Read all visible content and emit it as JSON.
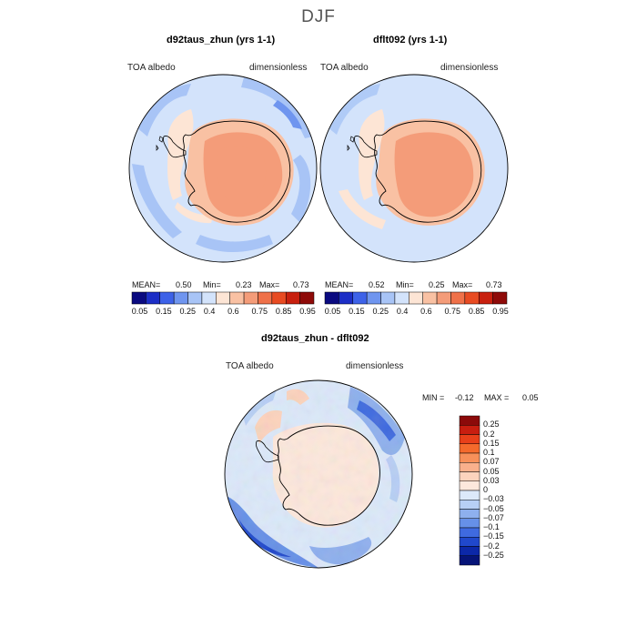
{
  "figure": {
    "season": "DJF"
  },
  "panels": [
    {
      "title": "d92taus_zhun (yrs 1-1)",
      "variable": "TOA albedo",
      "units": "dimensionless",
      "stats": {
        "mean_label": "MEAN=",
        "mean": "0.50",
        "min_label": "Min=",
        "min": "0.23",
        "max_label": "Max=",
        "max": "0.73"
      }
    },
    {
      "title": "dflt092 (yrs 1-1)",
      "variable": "TOA albedo",
      "units": "dimensionless",
      "stats": {
        "mean_label": "MEAN=",
        "mean": "0.52",
        "min_label": "Min=",
        "min": "0.25",
        "max_label": "Max=",
        "max": "0.73"
      }
    },
    {
      "title": "d92taus_zhun - dflt092",
      "variable": "TOA albedo",
      "units": "dimensionless",
      "stats": {
        "min_label": "MIN =",
        "min": "-0.12",
        "max_label": "MAX =",
        "max": "0.05"
      }
    }
  ],
  "chart_data": [
    {
      "type": "heatmap",
      "projection": "south polar stereographic",
      "title": "d92taus_zhun (yrs 1-1)",
      "field": "TOA albedo",
      "units": "dimensionless",
      "mean": 0.5,
      "min": 0.23,
      "max": 0.73,
      "colorbar_levels": [
        "0.05",
        "0.15",
        "0.25",
        "0.4",
        "0.6",
        "0.75",
        "0.85",
        "0.95"
      ],
      "colorbar_colors": [
        "#0a0a80",
        "#1c2ec6",
        "#3d62e8",
        "#6f95ef",
        "#a8c4f6",
        "#d3e3fb",
        "#fde5d5",
        "#f9c1a3",
        "#f49c79",
        "#ef7149",
        "#e84b22",
        "#c8200e",
        "#8e0a08"
      ]
    },
    {
      "type": "heatmap",
      "projection": "south polar stereographic",
      "title": "dflt092 (yrs 1-1)",
      "field": "TOA albedo",
      "units": "dimensionless",
      "mean": 0.52,
      "min": 0.25,
      "max": 0.73,
      "colorbar_levels": [
        "0.05",
        "0.15",
        "0.25",
        "0.4",
        "0.6",
        "0.75",
        "0.85",
        "0.95"
      ],
      "colorbar_colors": [
        "#0a0a80",
        "#1c2ec6",
        "#3d62e8",
        "#6f95ef",
        "#a8c4f6",
        "#d3e3fb",
        "#fde5d5",
        "#f9c1a3",
        "#f49c79",
        "#ef7149",
        "#e84b22",
        "#c8200e",
        "#8e0a08"
      ]
    },
    {
      "type": "heatmap",
      "projection": "south polar stereographic",
      "title": "d92taus_zhun - dflt092",
      "field": "TOA albedo difference",
      "units": "dimensionless",
      "min": -0.12,
      "max": 0.05,
      "colorbar_levels": [
        "0.25",
        "0.2",
        "0.15",
        "0.1",
        "0.07",
        "0.05",
        "0.03",
        "0",
        "−0.03",
        "−0.05",
        "−0.07",
        "−0.1",
        "−0.15",
        "−0.2",
        "−0.25"
      ],
      "colorbar_colors": [
        "#8c0a0a",
        "#c81e10",
        "#e8401a",
        "#f46a2c",
        "#f7905a",
        "#f9b08c",
        "#fcd3bd",
        "#fde8dc",
        "#dce9fa",
        "#b7cff5",
        "#8eb0ee",
        "#6690e8",
        "#3f6ae0",
        "#2048cc",
        "#0c28a8",
        "#061478"
      ]
    }
  ]
}
